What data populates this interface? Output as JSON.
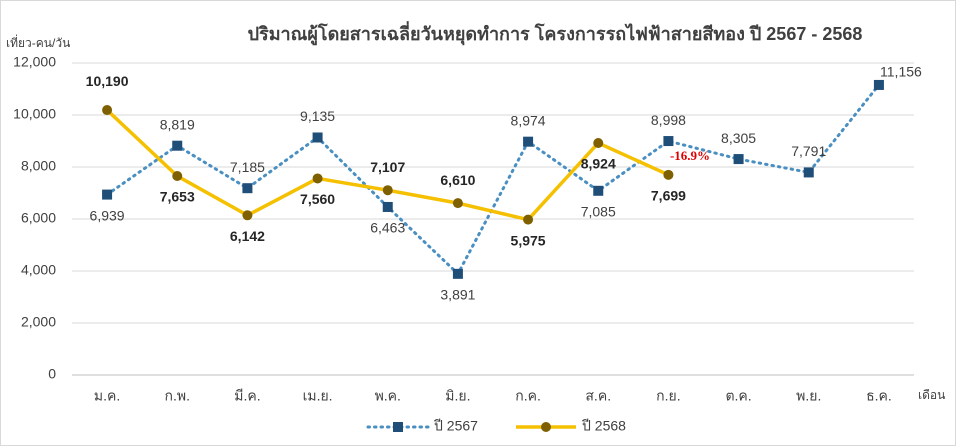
{
  "chart_data": {
    "type": "line",
    "title": "ปริมาณผู้โดยสารเฉลี่ยวันหยุดทำการ โครงการรถไฟฟ้าสายสีทอง ปี 2567 - 2568",
    "y_label": "เที่ยว-คน/วัน",
    "x_label": "เดือน",
    "categories": [
      "ม.ค.",
      "ก.พ.",
      "มี.ค.",
      "เม.ย.",
      "พ.ค.",
      "มิ.ย.",
      "ก.ค.",
      "ส.ค.",
      "ก.ย.",
      "ต.ค.",
      "พ.ย.",
      "ธ.ค."
    ],
    "series": [
      {
        "name": "ปี 2567",
        "color": "#4a8fc2",
        "marker_color": "#1f4e79",
        "values": [
          6939,
          8819,
          7185,
          9135,
          6463,
          3891,
          8974,
          7085,
          8998,
          8305,
          7791,
          11156
        ],
        "value_labels": [
          "6,939",
          "8,819",
          "7,185",
          "9,135",
          "6,463",
          "3,891",
          "8,974",
          "7,085",
          "8,998",
          "8,305",
          "7,791",
          "11,156"
        ]
      },
      {
        "name": "ปี 2568",
        "color": "#f5c000",
        "marker_color": "#7f6000",
        "values": [
          10190,
          7653,
          6142,
          7560,
          7107,
          6610,
          5975,
          8924,
          7699,
          null,
          null,
          null
        ],
        "value_labels": [
          "10,190",
          "7,653",
          "6,142",
          "7,560",
          "7,107",
          "6,610",
          "5,975",
          "8,924",
          "7,699",
          null,
          null,
          null
        ]
      }
    ],
    "annotations": [
      {
        "text": "-16.9%",
        "color": "#e00000"
      }
    ],
    "ylim": [
      0,
      12000
    ],
    "yticks": [
      0,
      {
        "value": 2000,
        "label": "2,000"
      },
      {
        "value": 4000,
        "label": "4,000"
      },
      {
        "value": 6000,
        "label": "6,000"
      },
      {
        "value": 8000,
        "label": "8,000"
      },
      {
        "value": 10000,
        "label": "10,000"
      },
      {
        "value": 12000,
        "label": "12,000"
      }
    ],
    "grid": true,
    "legend": "bottom"
  }
}
